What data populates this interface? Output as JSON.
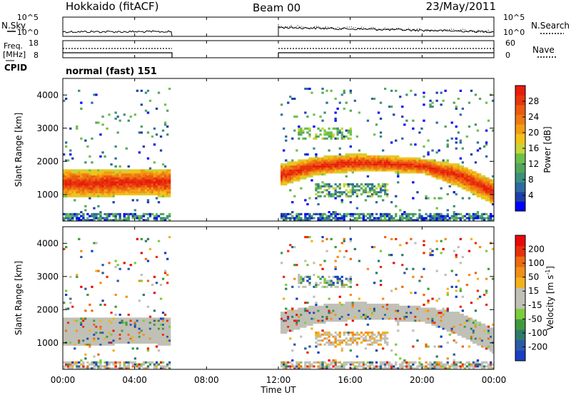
{
  "header": {
    "station": "Hokkaido (fitACF)",
    "beam": "Beam 00",
    "date": "23/May/2011"
  },
  "summary": {
    "nsky_label": "N.Sky",
    "nsearch_label": "N.Search",
    "freq_label": "Freq.",
    "freq_unit": "[MHz]",
    "nave_label": "Nave",
    "cpid_label": "CPID",
    "cpid_value": "normal (fast) 151",
    "noise_ticks": [
      "10^5",
      "10^0"
    ],
    "freq_ticks": [
      "18",
      "8"
    ],
    "nave_ticks": [
      "60",
      "0"
    ]
  },
  "xaxis": {
    "label": "Time UT",
    "ticks": [
      "00:00",
      "04:00",
      "08:00",
      "12:00",
      "16:00",
      "20:00",
      "00:00"
    ]
  },
  "colors": {
    "power_scale": [
      "#0000ff",
      "#1e3fa8",
      "#2f6aa0",
      "#3b8f7c",
      "#56a55c",
      "#6cc04a",
      "#c7d43a",
      "#f2c21a",
      "#f39d12",
      "#ee7a12",
      "#ec5a10",
      "#e8360c",
      "#e81d0c"
    ],
    "velocity_scale": [
      "#1a3fbf",
      "#2c5aa8",
      "#2f7a6a",
      "#3f9a3f",
      "#7ccd3c",
      "#c0c0b6",
      "#c0c0b6",
      "#f2b21c",
      "#f0901a",
      "#ec6a12",
      "#e8300c",
      "#e80a0a"
    ],
    "ground_scatter": "#c0c0b6"
  },
  "chart_data": [
    {
      "type": "heatmap",
      "title": "Power",
      "ylabel": "Slant Range [km]",
      "xlabel": "",
      "x_range_hours": [
        0,
        24
      ],
      "ylim": [
        200,
        4500
      ],
      "yticks": [
        "1000",
        "2000",
        "3000",
        "4000"
      ],
      "colorbar_label": "Power [dB]",
      "colorbar_ticks": [
        "4",
        "8",
        "12",
        "16",
        "20",
        "24",
        "28"
      ],
      "data_gap_hours": [
        6,
        12
      ],
      "main_echo_band": [
        {
          "time": 0,
          "range_low": 900,
          "range_high": 1750
        },
        {
          "time": 2,
          "range_low": 900,
          "range_high": 1700
        },
        {
          "time": 4,
          "range_low": 950,
          "range_high": 1750
        },
        {
          "time": 6,
          "range_low": 900,
          "range_high": 1750
        },
        {
          "time": 12,
          "range_low": 1200,
          "range_high": 1900
        },
        {
          "time": 14,
          "range_low": 1550,
          "range_high": 2100
        },
        {
          "time": 16,
          "range_low": 1650,
          "range_high": 2200
        },
        {
          "time": 18,
          "range_low": 1650,
          "range_high": 2150
        },
        {
          "time": 20,
          "range_low": 1600,
          "range_high": 2050
        },
        {
          "time": 22,
          "range_low": 1200,
          "range_high": 1900
        },
        {
          "time": 24,
          "range_low": 650,
          "range_high": 1400
        }
      ]
    },
    {
      "type": "heatmap",
      "title": "Velocity",
      "ylabel": "Slant Range [km]",
      "xlabel": "Time UT",
      "x_range_hours": [
        0,
        24
      ],
      "ylim": [
        200,
        4500
      ],
      "yticks": [
        "1000",
        "2000",
        "3000",
        "4000"
      ],
      "colorbar_label": "Velocity [m s^-1]",
      "colorbar_ticks": [
        "200",
        "100",
        "50",
        "15",
        "-15",
        "-50",
        "-100",
        "-200"
      ],
      "data_gap_hours": [
        6,
        12
      ]
    }
  ]
}
